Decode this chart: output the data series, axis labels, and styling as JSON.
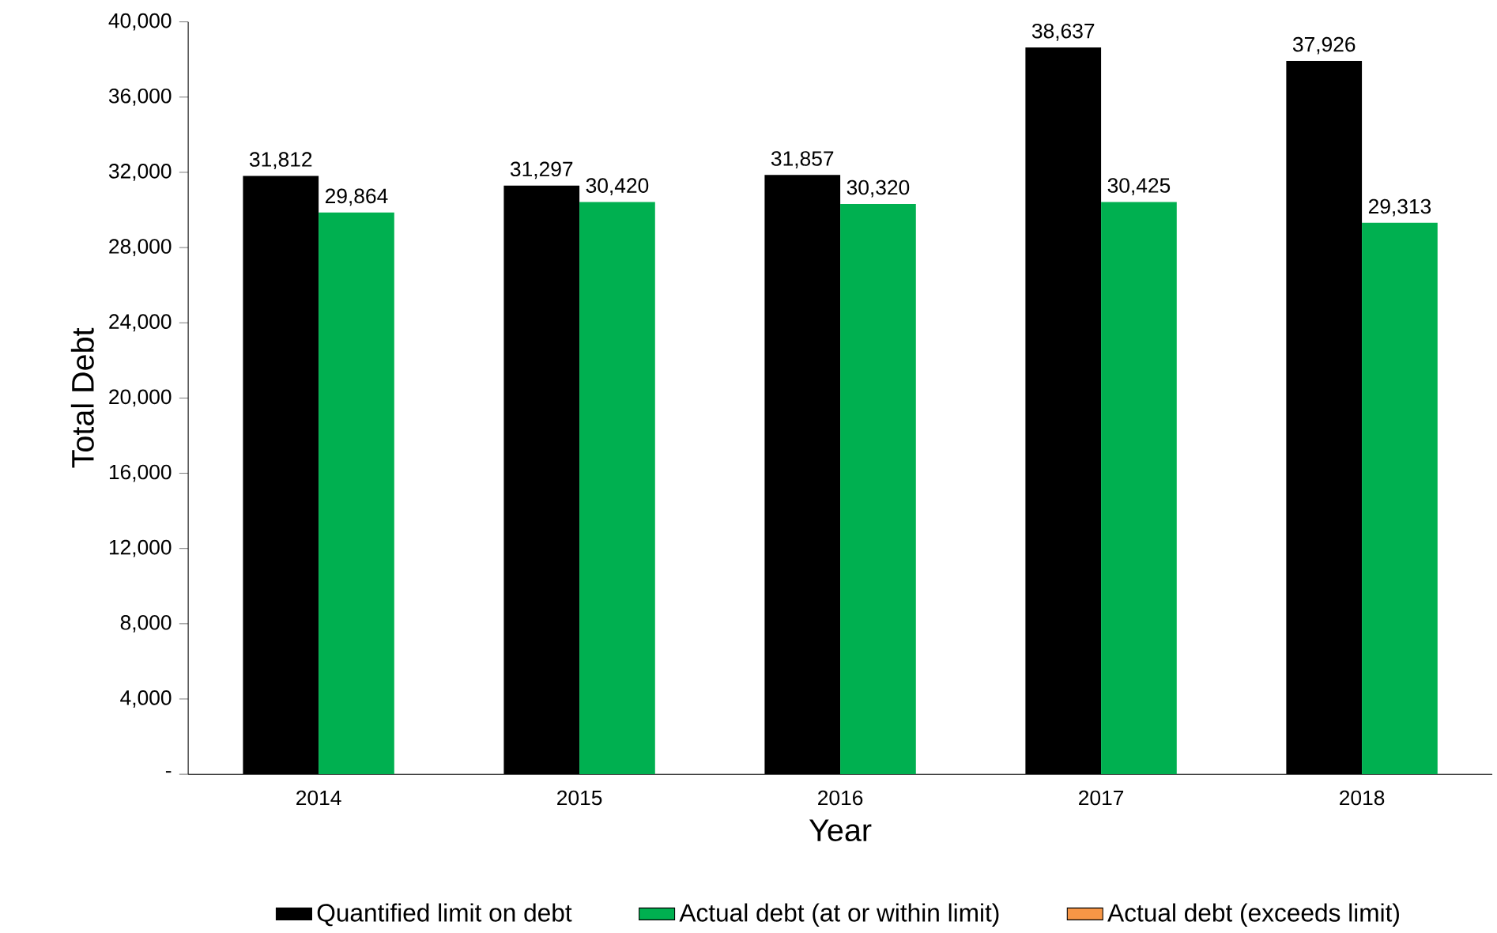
{
  "chart_data": {
    "type": "bar",
    "xlabel": "Year",
    "ylabel": "Total Debt",
    "categories": [
      "2014",
      "2015",
      "2016",
      "2017",
      "2018"
    ],
    "series": [
      {
        "name": "Quantified limit on debt",
        "color": "#000000",
        "values": [
          31812,
          31297,
          31857,
          38637,
          37926
        ],
        "value_labels": [
          "31,812",
          "31,297",
          "31,857",
          "38,637",
          "37,926"
        ]
      },
      {
        "name": "Actual debt (at or within limit)",
        "color": "#00b050",
        "values": [
          29864,
          30420,
          30320,
          30425,
          29313
        ],
        "value_labels": [
          "29,864",
          "30,420",
          "30,320",
          "30,425",
          "29,313"
        ]
      },
      {
        "name": "Actual debt (exceeds limit)",
        "color": "#f79646",
        "values": [
          null,
          null,
          null,
          null,
          null
        ]
      }
    ],
    "ylim": [
      0,
      40000
    ],
    "yticks": [
      {
        "value": 0,
        "label": "-"
      },
      {
        "value": 4000,
        "label": "4,000"
      },
      {
        "value": 8000,
        "label": "8,000"
      },
      {
        "value": 12000,
        "label": "12,000"
      },
      {
        "value": 16000,
        "label": "16,000"
      },
      {
        "value": 20000,
        "label": "20,000"
      },
      {
        "value": 24000,
        "label": "24,000"
      },
      {
        "value": 28000,
        "label": "28,000"
      },
      {
        "value": 32000,
        "label": "32,000"
      },
      {
        "value": 36000,
        "label": "36,000"
      },
      {
        "value": 40000,
        "label": "40,000"
      }
    ],
    "grid": false,
    "legend": "bottom"
  }
}
